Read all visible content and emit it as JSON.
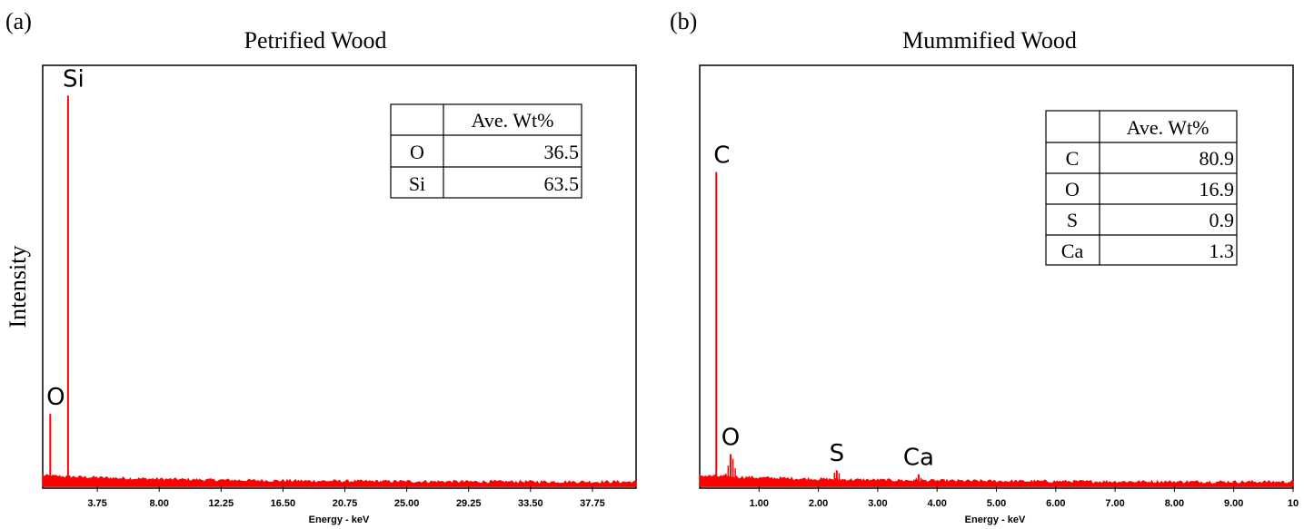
{
  "figure": {
    "ylabel": "Intensity",
    "colors": {
      "spectrum": "#ff0000",
      "frame": "#000000"
    }
  },
  "chart_data": [
    {
      "type": "line",
      "panel_label": "(a)",
      "title": "Petrified Wood",
      "xlabel": "Energy - keV",
      "xlim": [
        0,
        40.75
      ],
      "ylim": [
        0,
        100
      ],
      "x_ticks": [
        "3.75",
        "8.00",
        "12.25",
        "16.50",
        "20.75",
        "25.00",
        "29.25",
        "33.50",
        "37.75"
      ],
      "x_tick_values": [
        3.75,
        8.0,
        12.25,
        16.5,
        20.75,
        25.0,
        29.25,
        33.5,
        37.75
      ],
      "peaks": [
        {
          "label": "O",
          "x": 0.52,
          "y": 18
        },
        {
          "label": "Si",
          "x": 1.74,
          "y": 97
        }
      ],
      "table": {
        "header": [
          "",
          "Ave. Wt%"
        ],
        "rows": [
          [
            "O",
            "36.5"
          ],
          [
            "Si",
            "63.5"
          ]
        ]
      }
    },
    {
      "type": "line",
      "panel_label": "(b)",
      "title": "Mummified Wood",
      "xlabel": "Energy - keV",
      "xlim": [
        0,
        10
      ],
      "ylim": [
        0,
        100
      ],
      "x_ticks": [
        "1.00",
        "2.00",
        "3.00",
        "4.00",
        "5.00",
        "6.00",
        "7.00",
        "8.00",
        "9.00",
        "10"
      ],
      "x_tick_values": [
        1,
        2,
        3,
        4,
        5,
        6,
        7,
        8,
        9,
        10
      ],
      "peaks": [
        {
          "label": "C",
          "x": 0.28,
          "y": 78
        },
        {
          "label": "O",
          "x": 0.52,
          "y": 8
        },
        {
          "label": "S",
          "x": 2.31,
          "y": 4
        },
        {
          "label": "Ca",
          "x": 3.69,
          "y": 3
        }
      ],
      "table": {
        "header": [
          "",
          "Ave. Wt%"
        ],
        "rows": [
          [
            "C",
            "80.9"
          ],
          [
            "O",
            "16.9"
          ],
          [
            "S",
            "0.9"
          ],
          [
            "Ca",
            "1.3"
          ]
        ]
      }
    }
  ]
}
